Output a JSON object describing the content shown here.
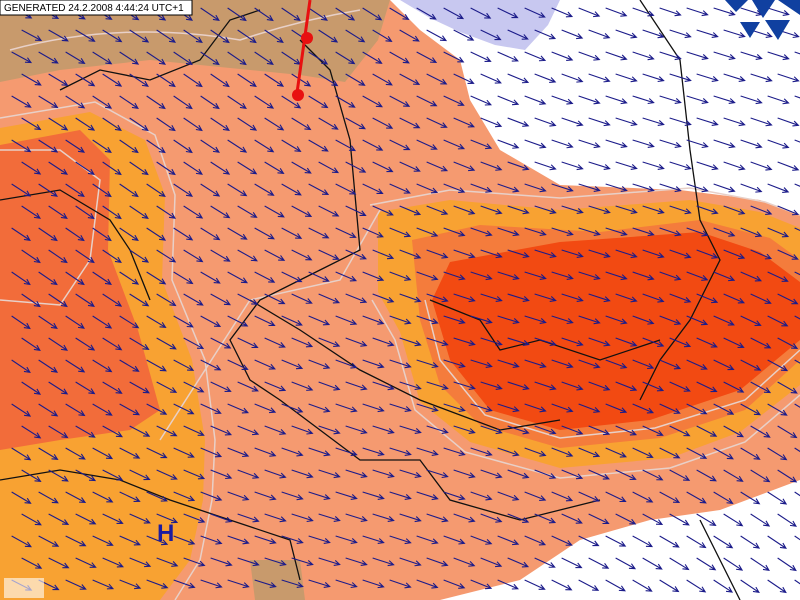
{
  "header": {
    "generated": "GENERATED 24.2.2008 4:44:24 UTC+1"
  },
  "labels": {
    "pressure_center": "H"
  }
}
